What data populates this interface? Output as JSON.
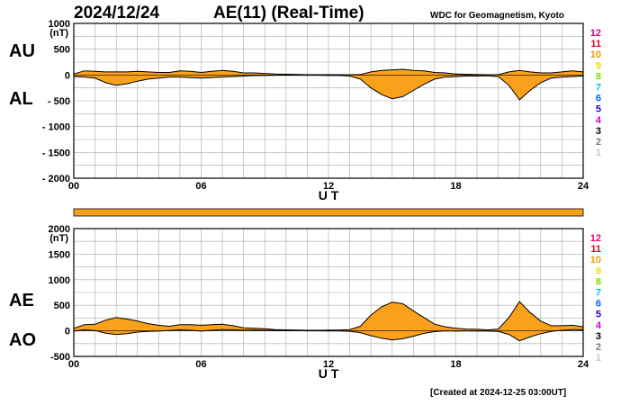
{
  "header": {
    "date": "2024/12/24",
    "title": "AE(11) (Real-Time)",
    "source": "WDC for Geomagnetism, Kyoto",
    "created": "[Created at 2024-12-25 03:00UT]"
  },
  "colors": {
    "fill": "#F9A11B",
    "line": "#000000",
    "grid": "#a9a9a9",
    "status_bar": "#F9A11B"
  },
  "station_legend": [
    {
      "label": "12",
      "color": "#E8007F"
    },
    {
      "label": "11",
      "color": "#E8001E"
    },
    {
      "label": "10",
      "color": "#F59A00"
    },
    {
      "label": "9",
      "color": "#E6E200"
    },
    {
      "label": "8",
      "color": "#7CDB00"
    },
    {
      "label": "7",
      "color": "#00C8E6"
    },
    {
      "label": "6",
      "color": "#0064FF"
    },
    {
      "label": "5",
      "color": "#2A00C8"
    },
    {
      "label": "4",
      "color": "#D200D2"
    },
    {
      "label": "3",
      "color": "#000000"
    },
    {
      "label": "2",
      "color": "#7A7A7A"
    },
    {
      "label": "1",
      "color": "#C8C8C8"
    }
  ],
  "chart_data": [
    {
      "type": "area",
      "upper_label": "AU",
      "lower_label": "AL",
      "unit": "(nT)",
      "xlabel": "U T",
      "xlim": [
        0,
        24
      ],
      "ylim": [
        -2000,
        1000
      ],
      "x_ticks": [
        "00",
        "06",
        "12",
        "18",
        "24"
      ],
      "y_ticks": [
        "1000",
        "500",
        "0",
        "- 500",
        "- 1000",
        "- 1500",
        "- 2000"
      ],
      "grid": true,
      "series": [
        {
          "name": "AU",
          "x": [
            0,
            0.5,
            1,
            1.5,
            2,
            2.5,
            3,
            3.5,
            4,
            4.5,
            5,
            5.5,
            6,
            6.5,
            7,
            7.5,
            8,
            8.5,
            9,
            9.5,
            10,
            10.5,
            11,
            11.5,
            12,
            12.5,
            13,
            13.5,
            14,
            14.5,
            15,
            15.5,
            16,
            16.5,
            17,
            17.5,
            18,
            18.5,
            19,
            19.5,
            20,
            20.5,
            21,
            21.5,
            22,
            22.5,
            23,
            23.5,
            24
          ],
          "values": [
            20,
            80,
            70,
            60,
            60,
            60,
            70,
            60,
            50,
            50,
            80,
            70,
            50,
            70,
            90,
            70,
            40,
            40,
            30,
            20,
            15,
            10,
            5,
            5,
            5,
            5,
            5,
            10,
            60,
            90,
            100,
            110,
            90,
            80,
            50,
            40,
            20,
            15,
            10,
            5,
            5,
            60,
            90,
            60,
            40,
            40,
            60,
            80,
            60
          ]
        },
        {
          "name": "AL",
          "x": [
            0,
            0.5,
            1,
            1.5,
            2,
            2.5,
            3,
            3.5,
            4,
            4.5,
            5,
            5.5,
            6,
            6.5,
            7,
            7.5,
            8,
            8.5,
            9,
            9.5,
            10,
            10.5,
            11,
            11.5,
            12,
            12.5,
            13,
            13.5,
            14,
            14.5,
            15,
            15.5,
            16,
            16.5,
            17,
            17.5,
            18,
            18.5,
            19,
            19.5,
            20,
            20.5,
            21,
            21.5,
            22,
            22.5,
            23,
            23.5,
            24
          ],
          "values": [
            -30,
            -40,
            -60,
            -150,
            -200,
            -170,
            -120,
            -80,
            -60,
            -40,
            -40,
            -50,
            -60,
            -50,
            -40,
            -30,
            -20,
            -10,
            -10,
            -5,
            -5,
            -5,
            -5,
            -5,
            -10,
            -10,
            -20,
            -80,
            -250,
            -380,
            -460,
            -420,
            -300,
            -180,
            -80,
            -40,
            -30,
            -20,
            -20,
            -15,
            -30,
            -200,
            -480,
            -300,
            -150,
            -60,
            -40,
            -30,
            -20
          ]
        }
      ]
    },
    {
      "type": "area",
      "upper_label": "AE",
      "lower_label": "AO",
      "unit": "(nT)",
      "xlabel": "U T",
      "xlim": [
        0,
        24
      ],
      "ylim": [
        -500,
        2000
      ],
      "x_ticks": [
        "00",
        "06",
        "12",
        "18",
        "24"
      ],
      "y_ticks": [
        "2000",
        "1500",
        "1000",
        "500",
        "0",
        "-500"
      ],
      "grid": true,
      "series": [
        {
          "name": "AE",
          "x": [
            0,
            0.5,
            1,
            1.5,
            2,
            2.5,
            3,
            3.5,
            4,
            4.5,
            5,
            5.5,
            6,
            6.5,
            7,
            7.5,
            8,
            8.5,
            9,
            9.5,
            10,
            10.5,
            11,
            11.5,
            12,
            12.5,
            13,
            13.5,
            14,
            14.5,
            15,
            15.5,
            16,
            16.5,
            17,
            17.5,
            18,
            18.5,
            19,
            19.5,
            20,
            20.5,
            21,
            21.5,
            22,
            22.5,
            23,
            23.5,
            24
          ],
          "values": [
            50,
            120,
            130,
            210,
            260,
            230,
            190,
            140,
            110,
            90,
            120,
            120,
            110,
            120,
            130,
            100,
            60,
            50,
            40,
            25,
            20,
            15,
            10,
            10,
            15,
            15,
            25,
            90,
            310,
            470,
            560,
            530,
            390,
            260,
            130,
            80,
            50,
            35,
            30,
            20,
            35,
            260,
            570,
            360,
            190,
            100,
            100,
            110,
            80
          ]
        },
        {
          "name": "AO",
          "x": [
            0,
            0.5,
            1,
            1.5,
            2,
            2.5,
            3,
            3.5,
            4,
            4.5,
            5,
            5.5,
            6,
            6.5,
            7,
            7.5,
            8,
            8.5,
            9,
            9.5,
            10,
            10.5,
            11,
            11.5,
            12,
            12.5,
            13,
            13.5,
            14,
            14.5,
            15,
            15.5,
            16,
            16.5,
            17,
            17.5,
            18,
            18.5,
            19,
            19.5,
            20,
            20.5,
            21,
            21.5,
            22,
            22.5,
            23,
            23.5,
            24
          ],
          "values": [
            -5,
            20,
            5,
            -45,
            -70,
            -55,
            -25,
            -10,
            -5,
            5,
            20,
            10,
            -5,
            10,
            25,
            20,
            10,
            15,
            10,
            8,
            5,
            3,
            0,
            0,
            -3,
            -3,
            -8,
            -35,
            -95,
            -145,
            -180,
            -155,
            -105,
            -50,
            -15,
            0,
            -5,
            -3,
            -5,
            -5,
            -13,
            -70,
            -195,
            -120,
            -55,
            -10,
            10,
            25,
            20
          ]
        }
      ]
    }
  ]
}
